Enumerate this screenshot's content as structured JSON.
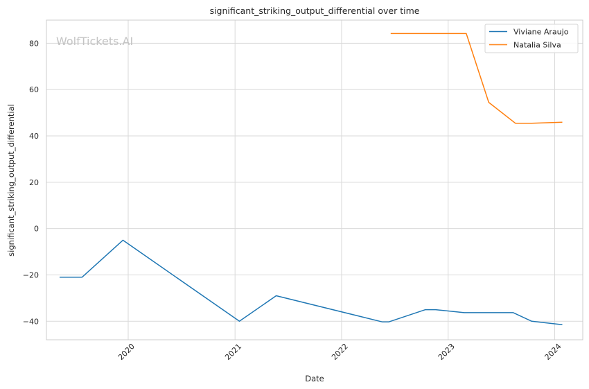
{
  "chart_data": {
    "type": "line",
    "title": "significant_striking_output_differential over time",
    "xlabel": "Date",
    "ylabel": "significant_striking_output_differential",
    "watermark": "WolfTickets.AI",
    "ylim": [
      -48,
      90
    ],
    "xlim": [
      "2019-03-27",
      "2024-04-06"
    ],
    "x_ticks": [
      "2020",
      "2021",
      "2022",
      "2023",
      "2024"
    ],
    "y_ticks": [
      -40,
      -20,
      0,
      20,
      40,
      60,
      80
    ],
    "grid": true,
    "legend_position": "top-right",
    "series": [
      {
        "name": "Viviane Araujo",
        "color": "#1f77b4",
        "x": [
          "2019-05-11",
          "2019-07-27",
          "2019-12-14",
          "2021-01-16",
          "2021-05-22",
          "2022-05-21",
          "2022-06-11",
          "2022-10-15",
          "2022-11-19",
          "2023-02-25",
          "2023-08-12",
          "2023-10-14",
          "2024-01-27"
        ],
        "values": [
          -21,
          -21,
          -5,
          -40,
          -29,
          -40.3,
          -40.3,
          -35,
          -35,
          -36.3,
          -36.3,
          -40,
          -41.5
        ]
      },
      {
        "name": "Natalia Silva",
        "color": "#ff7f0e",
        "x": [
          "2022-06-18",
          "2023-03-04",
          "2023-05-20",
          "2023-08-19",
          "2023-10-14",
          "2024-01-27"
        ],
        "values": [
          84.2,
          84.2,
          54.5,
          45.5,
          45.5,
          45.9
        ]
      }
    ]
  }
}
